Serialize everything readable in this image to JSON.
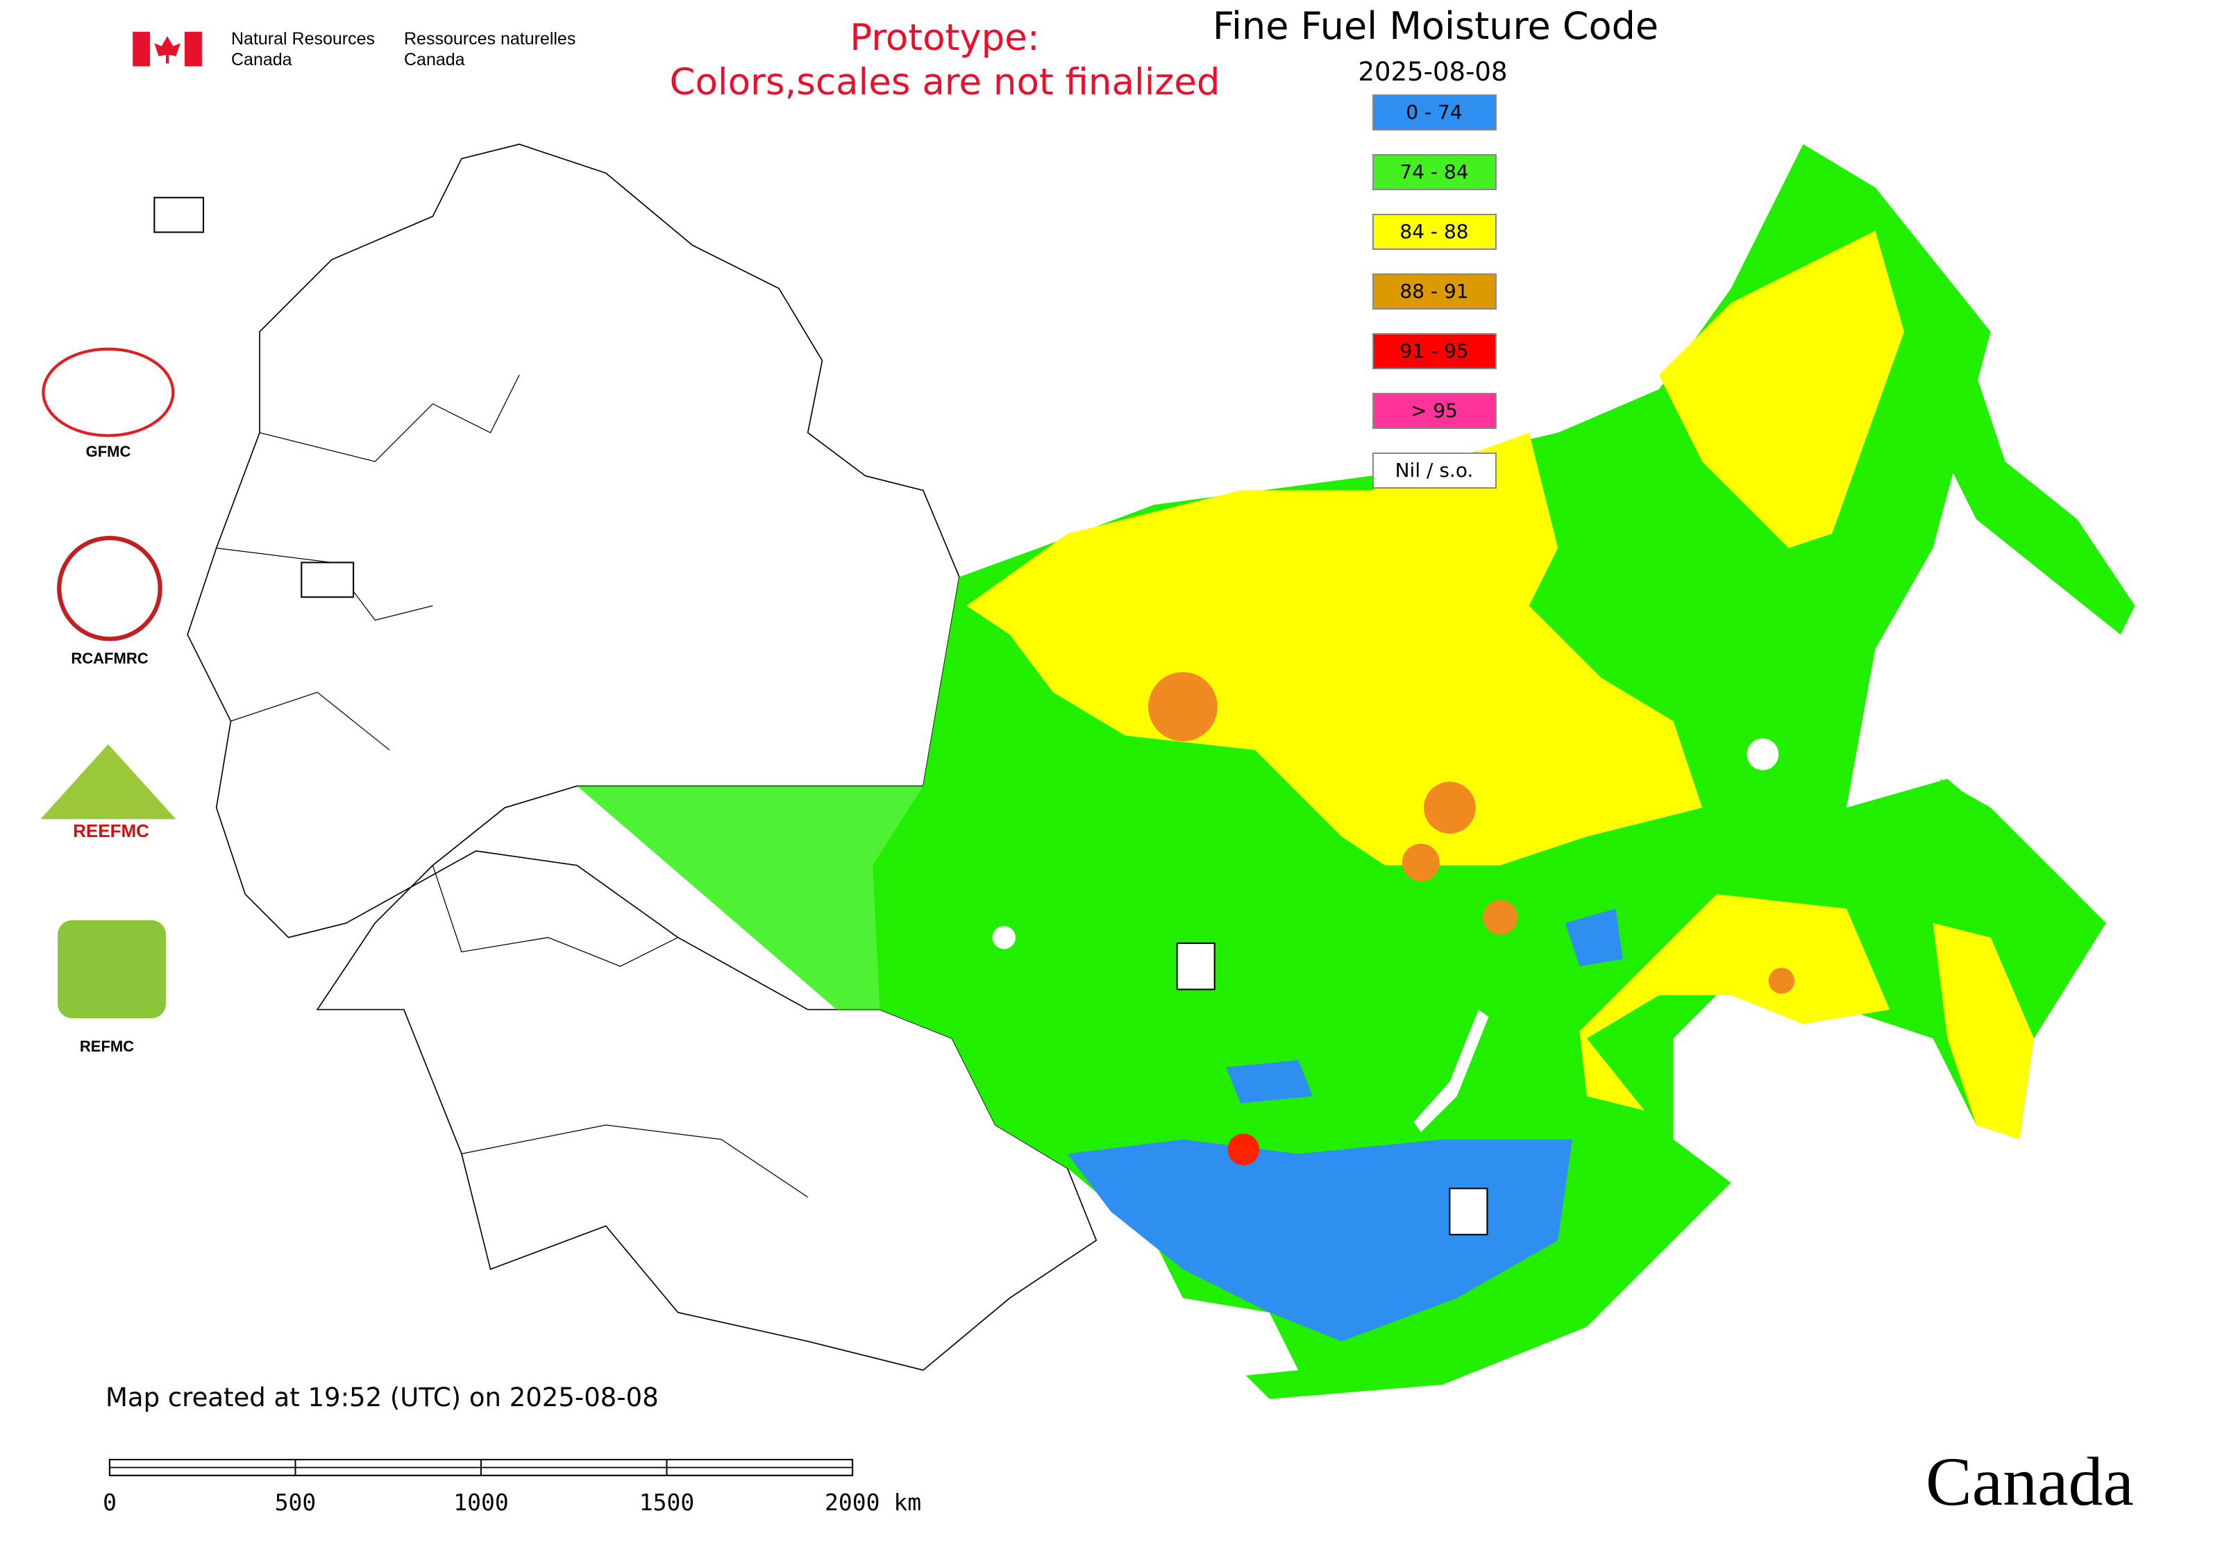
{
  "header": {
    "agency_en": [
      "Natural Resources",
      "Canada"
    ],
    "agency_fr": [
      "Ressources naturelles",
      "Canada"
    ]
  },
  "notice": [
    "Prototype:",
    "Colors,scales are not finalized"
  ],
  "title": "Fine Fuel Moisture Code",
  "date": "2025-08-08",
  "legend": [
    {
      "label": "0 - 74",
      "color": "#2f8ff0"
    },
    {
      "label": "74 - 84",
      "color": "#44f020"
    },
    {
      "label": "84 - 88",
      "color": "#ffff00"
    },
    {
      "label": "88 - 91",
      "color": "#dd9a00"
    },
    {
      "label": "91 - 95",
      "color": "#ff0000"
    },
    {
      "label": "> 95",
      "color": "#ff3399"
    },
    {
      "label": "Nil / s.o.",
      "color": "#ffffff"
    }
  ],
  "logos": [
    "GFMC",
    "RCAFMRC",
    "REEFMC",
    "REFMC"
  ],
  "footer": {
    "created": "Map created at 19:52 (UTC) on 2025-08-08",
    "scale_labels": [
      "0",
      "500",
      "1000",
      "1500",
      "2000 km"
    ],
    "wordmark": "Canada"
  }
}
